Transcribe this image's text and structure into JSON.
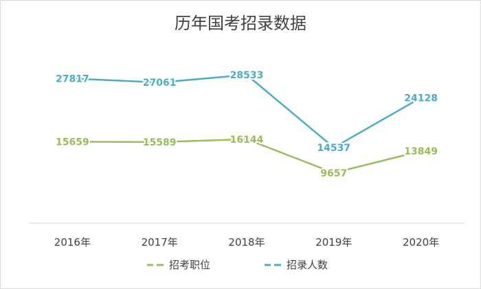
{
  "chart_data": {
    "type": "line",
    "title": "历年国考招录数据",
    "categories": [
      "2016年",
      "2017年",
      "2018年",
      "2019年",
      "2020年"
    ],
    "series": [
      {
        "name": "招考职位",
        "values": [
          15659,
          15589,
          16144,
          9657,
          13849
        ],
        "color": "#9bbb59"
      },
      {
        "name": "招录人数",
        "values": [
          27817,
          27061,
          28533,
          14537,
          24128
        ],
        "color": "#4bacc6"
      }
    ],
    "xlabel": "",
    "ylabel": "",
    "ylim": [
      0,
      35000
    ],
    "grid": false,
    "legend": "bottom",
    "axis_color": "#d9d9d9",
    "text_color": "#404040"
  }
}
